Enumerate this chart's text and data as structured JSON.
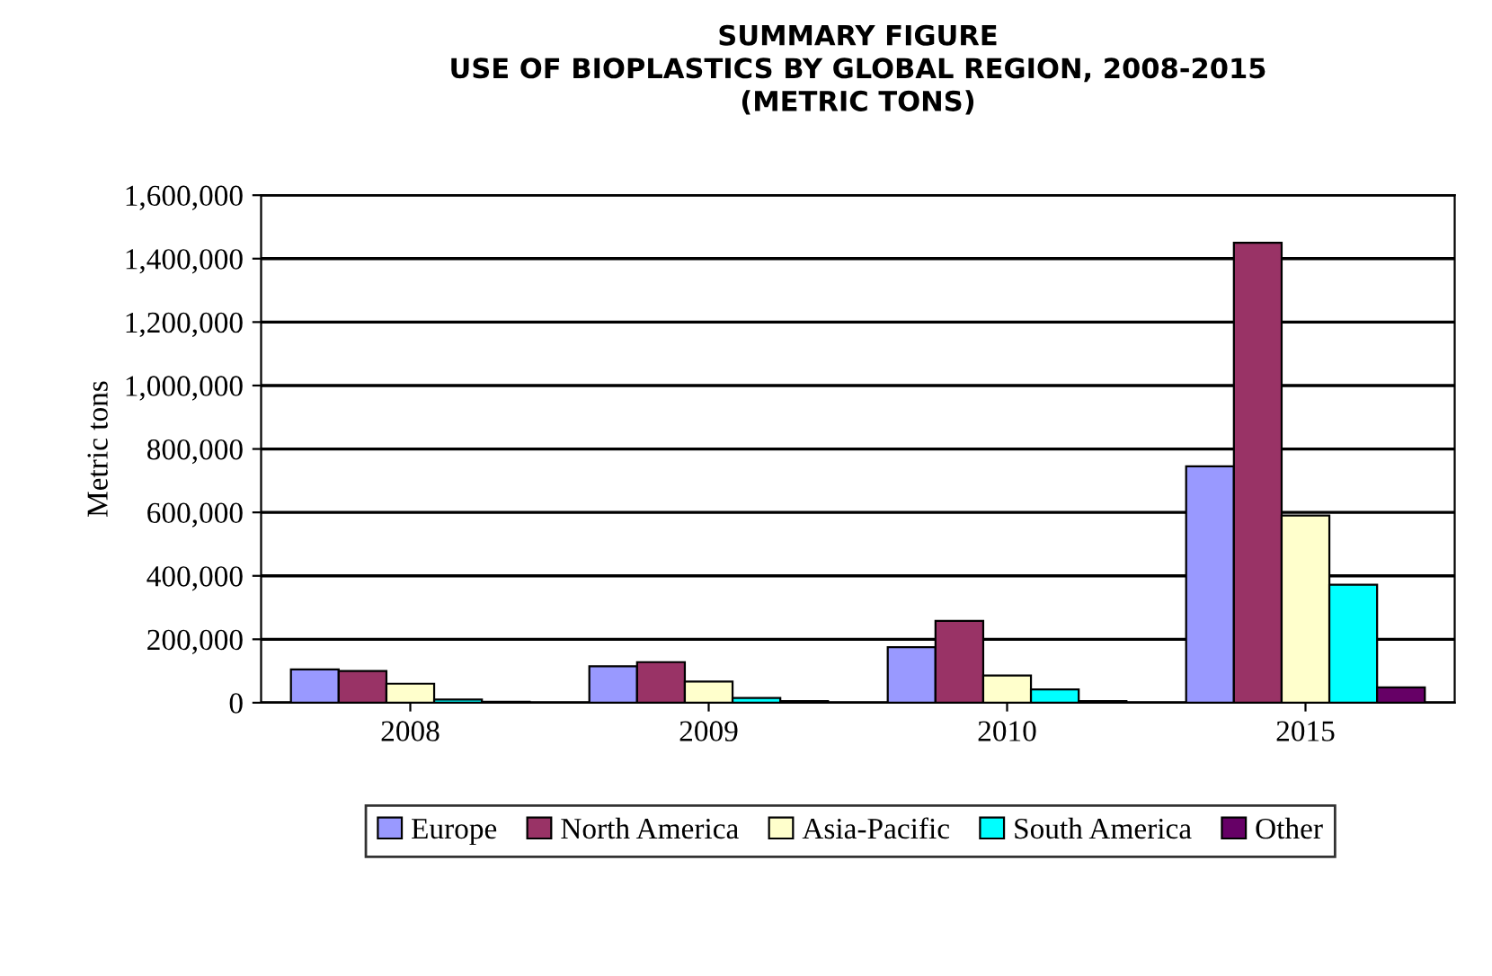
{
  "chart_data": {
    "type": "bar",
    "title": "SUMMARY FIGURE\nUSE OF BIOPLASTICS BY GLOBAL REGION, 2008-2015\n(METRIC TONS)",
    "ylabel": "Metric tons",
    "categories": [
      "2008",
      "2009",
      "2010",
      "2015"
    ],
    "series": [
      {
        "name": "Europe",
        "color": "#9999ff",
        "values": [
          105000,
          115000,
          175000,
          745000
        ]
      },
      {
        "name": "North America",
        "color": "#993366",
        "values": [
          100000,
          128000,
          258000,
          1450000
        ]
      },
      {
        "name": "Asia-Pacific",
        "color": "#ffffcc",
        "values": [
          60000,
          67000,
          86000,
          590000
        ]
      },
      {
        "name": "South America",
        "color": "#00ffff",
        "values": [
          10000,
          15000,
          42000,
          372000
        ]
      },
      {
        "name": "Other",
        "color": "#660066",
        "values": [
          3000,
          5000,
          5000,
          48000
        ]
      }
    ],
    "ylim": [
      0,
      1600000
    ],
    "yticks": [
      {
        "value": 0,
        "label": "0"
      },
      {
        "value": 200000,
        "label": "200,000"
      },
      {
        "value": 400000,
        "label": "400,000"
      },
      {
        "value": 600000,
        "label": "600,000"
      },
      {
        "value": 800000,
        "label": "800,000"
      },
      {
        "value": 1000000,
        "label": "1,000,000"
      },
      {
        "value": 1200000,
        "label": "1,200,000"
      },
      {
        "value": 1400000,
        "label": "1,400,000"
      },
      {
        "value": 1600000,
        "label": "1,600,000"
      }
    ],
    "grid": "y",
    "legend": "bottom"
  }
}
